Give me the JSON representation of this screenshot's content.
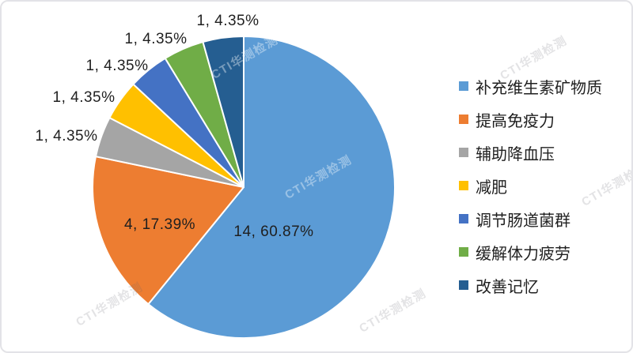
{
  "chart_data": {
    "type": "pie",
    "title": "",
    "total": 23,
    "start_angle_deg": 0,
    "direction": "clockwise",
    "legend_position": "right",
    "slices": [
      {
        "label": "补充维生素矿物质",
        "value": 14,
        "pct": "60.87%",
        "data_label": "14, 60.87%",
        "color": "#5B9BD5"
      },
      {
        "label": "提高免疫力",
        "value": 4,
        "pct": "17.39%",
        "data_label": "4, 17.39%",
        "color": "#ED7D31"
      },
      {
        "label": "辅助降血压",
        "value": 1,
        "pct": "4.35%",
        "data_label": "1, 4.35%",
        "color": "#A5A5A5"
      },
      {
        "label": "减肥",
        "value": 1,
        "pct": "4.35%",
        "data_label": "1, 4.35%",
        "color": "#FFC000"
      },
      {
        "label": "调节肠道菌群",
        "value": 1,
        "pct": "4.35%",
        "data_label": "1, 4.35%",
        "color": "#4472C4"
      },
      {
        "label": "缓解体力疲劳",
        "value": 1,
        "pct": "4.35%",
        "data_label": "1, 4.35%",
        "color": "#70AD47"
      },
      {
        "label": "改善记忆",
        "value": 1,
        "pct": "4.35%",
        "data_label": "1, 4.35%",
        "color": "#255E91"
      }
    ]
  },
  "watermark": {
    "text": "CTI华测检测"
  }
}
